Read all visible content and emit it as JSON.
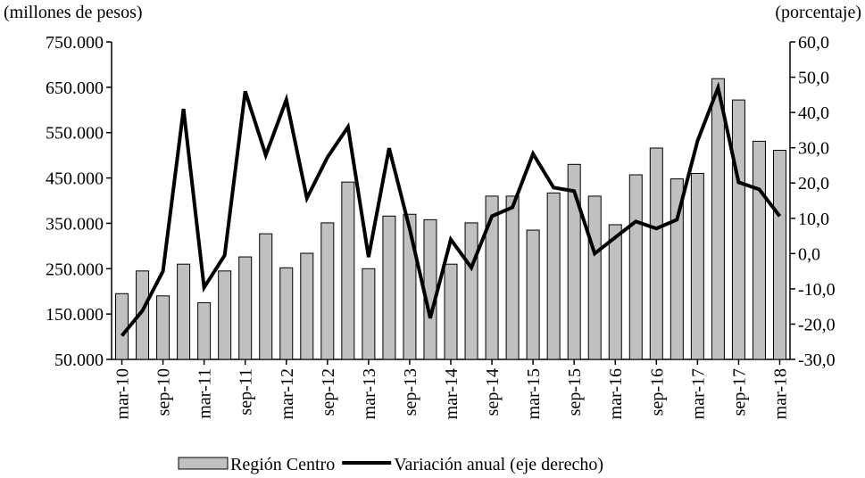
{
  "chart_data": {
    "type": "bar",
    "y_label": "(millones  de pesos)",
    "y2_label": "(porcentaje)",
    "categories": [
      "mar-10",
      null,
      "sep-10",
      null,
      "mar-11",
      null,
      "sep-11",
      null,
      "mar-12",
      null,
      "sep-12",
      null,
      "mar-13",
      null,
      "sep-13",
      null,
      "mar-14",
      null,
      "sep-14",
      null,
      "mar-15",
      null,
      "sep-15",
      null,
      "mar-16",
      null,
      "sep-16",
      null,
      "mar-17",
      null,
      "sep-17",
      null,
      "mar-18"
    ],
    "series": [
      {
        "name": "Región Centro",
        "type": "bar",
        "color": "#c0c0c0",
        "values": [
          195000,
          245000,
          190000,
          260000,
          175000,
          245000,
          276000,
          327000,
          252000,
          284000,
          351000,
          441000,
          250000,
          366000,
          370000,
          358000,
          260000,
          351000,
          410000,
          410000,
          335000,
          417000,
          480000,
          410000,
          347000,
          457000,
          516000,
          448000,
          460000,
          669000,
          622000,
          531000,
          511000
        ]
      },
      {
        "name": "Variación anual (eje derecho)",
        "type": "line",
        "axis": "y2",
        "color": "#000000",
        "values": [
          -23.3,
          -16.2,
          -5,
          41,
          -9.6,
          -0.5,
          46,
          27.9,
          43.6,
          15.7,
          27.3,
          35.9,
          -1,
          29.9,
          7,
          -18.3,
          4,
          -4,
          10.6,
          13.1,
          28.3,
          18.7,
          17.7,
          0,
          4.6,
          9.1,
          7.1,
          9.6,
          31.9,
          47,
          20.2,
          18.2,
          10.6
        ]
      }
    ],
    "ylim": [
      50000,
      750000
    ],
    "yticks": [
      {
        "value": 50000,
        "label": "50.000"
      },
      {
        "value": 150000,
        "label": "150.000"
      },
      {
        "value": 250000,
        "label": "250.000"
      },
      {
        "value": 350000,
        "label": "350.000"
      },
      {
        "value": 450000,
        "label": "450.000"
      },
      {
        "value": 550000,
        "label": "550.000"
      },
      {
        "value": 650000,
        "label": "650.000"
      },
      {
        "value": 750000,
        "label": "750.000"
      }
    ],
    "y2lim": [
      -30,
      60
    ],
    "y2ticks": [
      {
        "value": -30,
        "label": "-30,0"
      },
      {
        "value": -20,
        "label": "-20,0"
      },
      {
        "value": -10,
        "label": "-10,0"
      },
      {
        "value": 0,
        "label": "0,0"
      },
      {
        "value": 10,
        "label": "10,0"
      },
      {
        "value": 20,
        "label": "20,0"
      },
      {
        "value": 30,
        "label": "30,0"
      },
      {
        "value": 40,
        "label": "40,0"
      },
      {
        "value": 50,
        "label": "50,0"
      },
      {
        "value": 60,
        "label": "60,0"
      }
    ],
    "grid": false,
    "legend": "bottom"
  }
}
